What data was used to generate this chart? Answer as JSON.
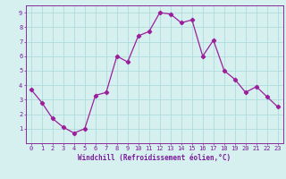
{
  "x": [
    0,
    1,
    2,
    3,
    4,
    5,
    6,
    7,
    8,
    9,
    10,
    11,
    12,
    13,
    14,
    15,
    16,
    17,
    18,
    19,
    20,
    21,
    22,
    23
  ],
  "y": [
    3.7,
    2.8,
    1.7,
    1.1,
    0.7,
    1.0,
    3.3,
    3.5,
    6.0,
    5.6,
    7.4,
    7.7,
    9.0,
    8.9,
    8.3,
    8.5,
    6.0,
    7.1,
    5.0,
    4.4,
    3.5,
    3.9,
    3.2,
    2.5
  ],
  "line_color": "#9b1f9b",
  "marker": "D",
  "marker_size": 2.2,
  "bg_color": "#d6f0f0",
  "grid_color": "#a8d8d8",
  "xlabel": "Windchill (Refroidissement éolien,°C)",
  "ylabel": "",
  "xlim": [
    -0.5,
    23.5
  ],
  "ylim": [
    0,
    9.5
  ],
  "xtick_vals": [
    0,
    1,
    2,
    3,
    4,
    5,
    6,
    7,
    8,
    9,
    10,
    11,
    12,
    13,
    14,
    15,
    16,
    17,
    18,
    19,
    20,
    21,
    22,
    23
  ],
  "xtick_labels": [
    "0",
    "1",
    "2",
    "3",
    "4",
    "5",
    "6",
    "7",
    "8",
    "9",
    "10",
    "11",
    "12",
    "13",
    "14",
    "15",
    "16",
    "17",
    "18",
    "19",
    "20",
    "21",
    "22",
    "23"
  ],
  "ytick_vals": [
    1,
    2,
    3,
    4,
    5,
    6,
    7,
    8,
    9
  ],
  "ytick_labels": [
    "1",
    "2",
    "3",
    "4",
    "5",
    "6",
    "7",
    "8",
    "9"
  ],
  "label_color": "#7a1a9a",
  "tick_color": "#7a1a9a",
  "spine_color": "#8a2a9a",
  "tick_fontsize": 5.0,
  "xlabel_fontsize": 5.5
}
